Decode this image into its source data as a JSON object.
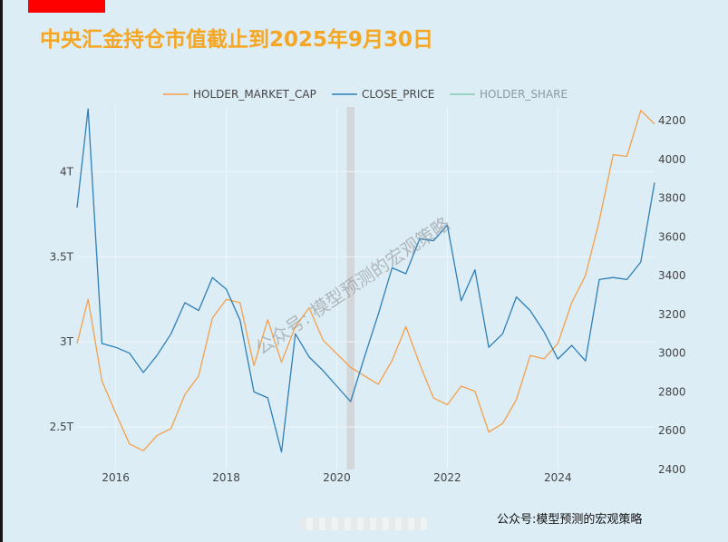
{
  "title": "中央汇金持仓市值截止到2025年9月30日",
  "footer": "公众号:模型预测的宏观策略",
  "watermark": "公众号: 模型预测的宏观策略",
  "colors": {
    "background": "#dcedf6",
    "market_cap": "#f5a04a",
    "close_price": "#2f7fb6",
    "share": "#86cbb0",
    "title": "#f5a623",
    "highlight": "#d3d7d9"
  },
  "chart_data": {
    "type": "line",
    "legend_position": "top-center",
    "grid": true,
    "x_ticks": [
      "2016",
      "2018",
      "2020",
      "2022",
      "2024"
    ],
    "x_range": [
      2015.3,
      2025.75
    ],
    "highlight_band_x": [
      2020.18,
      2020.32
    ],
    "y_left": {
      "range": [
        2.25,
        4.38
      ],
      "ticks": [
        {
          "v": 2.5,
          "label": "2.5T"
        },
        {
          "v": 3,
          "label": "3T"
        },
        {
          "v": 3.5,
          "label": "3.5T"
        },
        {
          "v": 4,
          "label": "4T"
        }
      ]
    },
    "y_right": {
      "range": [
        2400,
        4270
      ],
      "ticks": [
        2400,
        2600,
        2800,
        3000,
        3200,
        3400,
        3600,
        3800,
        4000,
        4200
      ]
    },
    "series": [
      {
        "name": "HOLDER_MARKET_CAP",
        "axis": "left",
        "x": [
          2015.3,
          2015.5,
          2015.75,
          2016.0,
          2016.25,
          2016.5,
          2016.75,
          2017.0,
          2017.25,
          2017.5,
          2017.75,
          2018.0,
          2018.25,
          2018.5,
          2018.75,
          2019.0,
          2019.25,
          2019.5,
          2019.75,
          2020.0,
          2020.25,
          2020.5,
          2020.75,
          2021.0,
          2021.25,
          2021.5,
          2021.75,
          2022.0,
          2022.25,
          2022.5,
          2022.75,
          2023.0,
          2023.25,
          2023.5,
          2023.75,
          2024.0,
          2024.25,
          2024.5,
          2024.75,
          2025.0,
          2025.25,
          2025.5,
          2025.75
        ],
        "values": [
          2.99,
          3.25,
          2.77,
          2.58,
          2.4,
          2.36,
          2.45,
          2.49,
          2.69,
          2.8,
          3.14,
          3.25,
          3.23,
          2.86,
          3.13,
          2.88,
          3.09,
          3.2,
          3.01,
          2.93,
          2.85,
          2.8,
          2.75,
          2.89,
          3.09,
          2.87,
          2.67,
          2.63,
          2.74,
          2.71,
          2.47,
          2.52,
          2.66,
          2.92,
          2.9,
          2.99,
          3.23,
          3.39,
          3.71,
          4.1,
          4.09,
          4.36,
          4.28
        ]
      },
      {
        "name": "CLOSE_PRICE",
        "axis": "right",
        "x": [
          2015.3,
          2015.5,
          2015.75,
          2016.0,
          2016.25,
          2016.5,
          2016.75,
          2017.0,
          2017.25,
          2017.5,
          2017.75,
          2018.0,
          2018.25,
          2018.5,
          2018.75,
          2019.0,
          2019.25,
          2019.5,
          2019.75,
          2020.0,
          2020.25,
          2020.5,
          2020.75,
          2021.0,
          2021.25,
          2021.5,
          2021.75,
          2022.0,
          2022.25,
          2022.5,
          2022.75,
          2023.0,
          2023.25,
          2023.5,
          2023.75,
          2024.0,
          2024.25,
          2024.5,
          2024.75,
          2025.0,
          2025.25,
          2025.5,
          2025.75
        ],
        "values": [
          3750,
          4260,
          3050,
          3030,
          3000,
          2900,
          2990,
          3100,
          3260,
          3220,
          3390,
          3330,
          3170,
          2800,
          2770,
          2490,
          3100,
          2980,
          2910,
          2830,
          2750,
          2980,
          3200,
          3440,
          3410,
          3590,
          3580,
          3660,
          3270,
          3430,
          3030,
          3100,
          3290,
          3220,
          3110,
          2970,
          3040,
          2960,
          3380,
          3390,
          3380,
          3470,
          3880
        ]
      },
      {
        "name": "HOLDER_SHARE",
        "axis": "none",
        "visible": false,
        "x": [],
        "values": []
      }
    ]
  }
}
